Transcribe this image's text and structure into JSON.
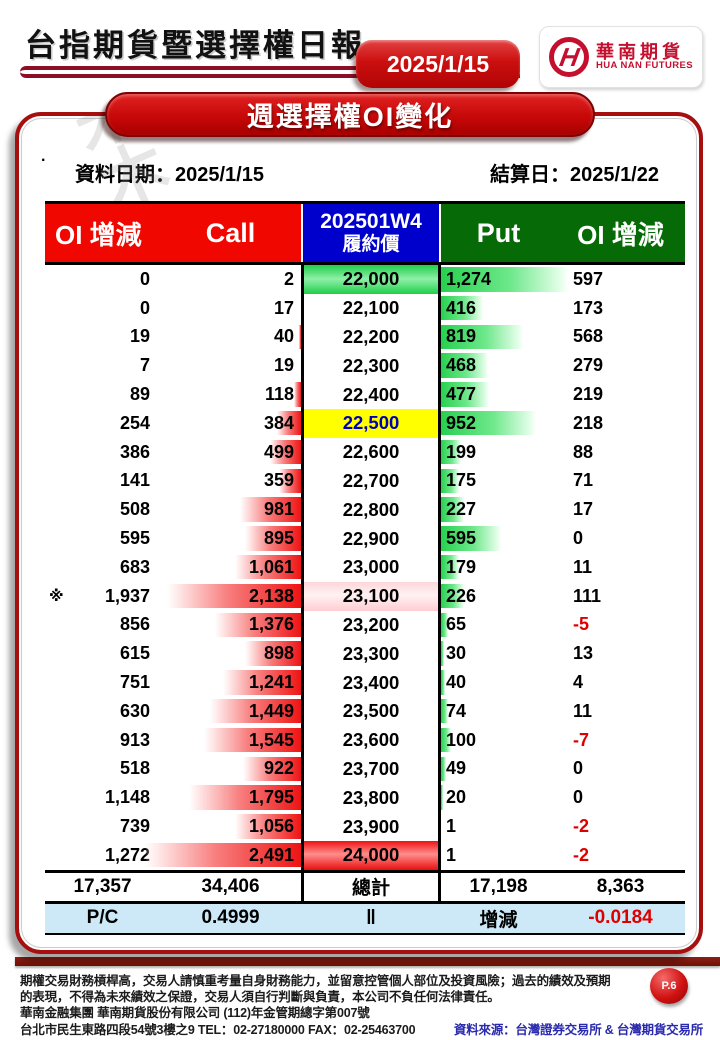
{
  "header": {
    "title": "台指期貨暨選擇權日報",
    "date_badge": "2025/1/15",
    "logo": {
      "zh": "華南期貨",
      "en": "HUA NAN FUTURES",
      "monogram": "H"
    }
  },
  "banner": {
    "title": "週選擇權OI變化"
  },
  "info": {
    "data_date": "資料日期：2025/1/15",
    "settle_date": "結算日：2025/1/22",
    "watermark": "米木"
  },
  "table": {
    "header": {
      "call_oi_change": "OI 增減",
      "call": "Call",
      "contract": "202501W4",
      "strike_label": "履約價",
      "put": "Put",
      "put_oi_change": "OI 增減"
    },
    "marker": "※",
    "rows": [
      {
        "call_chg": "0",
        "call_oi": "2",
        "strike": "22,000",
        "put_oi": "1,274",
        "put_chg": "597",
        "hl": "green"
      },
      {
        "call_chg": "0",
        "call_oi": "17",
        "strike": "22,100",
        "put_oi": "416",
        "put_chg": "173"
      },
      {
        "call_chg": "19",
        "call_oi": "40",
        "strike": "22,200",
        "put_oi": "819",
        "put_chg": "568"
      },
      {
        "call_chg": "7",
        "call_oi": "19",
        "strike": "22,300",
        "put_oi": "468",
        "put_chg": "279"
      },
      {
        "call_chg": "89",
        "call_oi": "118",
        "strike": "22,400",
        "put_oi": "477",
        "put_chg": "219"
      },
      {
        "call_chg": "254",
        "call_oi": "384",
        "strike": "22,500",
        "put_oi": "952",
        "put_chg": "218",
        "hl": "yellow"
      },
      {
        "call_chg": "386",
        "call_oi": "499",
        "strike": "22,600",
        "put_oi": "199",
        "put_chg": "88"
      },
      {
        "call_chg": "141",
        "call_oi": "359",
        "strike": "22,700",
        "put_oi": "175",
        "put_chg": "71"
      },
      {
        "call_chg": "508",
        "call_oi": "981",
        "strike": "22,800",
        "put_oi": "227",
        "put_chg": "17"
      },
      {
        "call_chg": "595",
        "call_oi": "895",
        "strike": "22,900",
        "put_oi": "595",
        "put_chg": "0"
      },
      {
        "call_chg": "683",
        "call_oi": "1,061",
        "strike": "23,000",
        "put_oi": "179",
        "put_chg": "11"
      },
      {
        "call_chg": "1,937",
        "call_oi": "2,138",
        "strike": "23,100",
        "put_oi": "226",
        "put_chg": "111",
        "hl": "pink",
        "marker": true
      },
      {
        "call_chg": "856",
        "call_oi": "1,376",
        "strike": "23,200",
        "put_oi": "65",
        "put_chg": "-5"
      },
      {
        "call_chg": "615",
        "call_oi": "898",
        "strike": "23,300",
        "put_oi": "30",
        "put_chg": "13"
      },
      {
        "call_chg": "751",
        "call_oi": "1,241",
        "strike": "23,400",
        "put_oi": "40",
        "put_chg": "4"
      },
      {
        "call_chg": "630",
        "call_oi": "1,449",
        "strike": "23,500",
        "put_oi": "74",
        "put_chg": "11"
      },
      {
        "call_chg": "913",
        "call_oi": "1,545",
        "strike": "23,600",
        "put_oi": "100",
        "put_chg": "-7"
      },
      {
        "call_chg": "518",
        "call_oi": "922",
        "strike": "23,700",
        "put_oi": "49",
        "put_chg": "0"
      },
      {
        "call_chg": "1,148",
        "call_oi": "1,795",
        "strike": "23,800",
        "put_oi": "20",
        "put_chg": "0"
      },
      {
        "call_chg": "739",
        "call_oi": "1,056",
        "strike": "23,900",
        "put_oi": "1",
        "put_chg": "-2"
      },
      {
        "call_chg": "1,272",
        "call_oi": "2,491",
        "strike": "24,000",
        "put_oi": "1",
        "put_chg": "-2",
        "hl": "red"
      }
    ],
    "total": {
      "label": "總計",
      "call_oi_change": "17,357",
      "call_oi": "34,406",
      "put_oi": "17,198",
      "put_oi_change": "8,363"
    },
    "pc_ratio": {
      "label": "P/C",
      "value": "0.4999",
      "separator": "‖",
      "change_label": "增減",
      "change_value": "-0.0184"
    }
  },
  "colors": {
    "call_header": "#f00800",
    "strike_header": "#0000cc",
    "put_header": "#066b06",
    "yellow_highlight": "#ffff00",
    "negative": "#dd0000",
    "pc_row_bg": "#cde9f7",
    "accent_red": "#a50f0f"
  },
  "footer": {
    "disclaimer1": "期權交易財務槓桿高，交易人請慎重考量自身財務能力，並留意控管個人部位及投資風險；過去的績效及預期",
    "disclaimer2": "的表現，不得為未來績效之保證，交易人須自行判斷與負責，本公司不負任何法律責任。",
    "company": "華南金融集團 華南期貨股份有限公司 (112)年金管期總字第007號",
    "address": "台北市民生東路四段54號3樓之9  TEL：02-27180000  FAX：02-25463700",
    "source": "資料來源：台灣證券交易所 & 台灣期貨交易所",
    "page": "P.6"
  }
}
